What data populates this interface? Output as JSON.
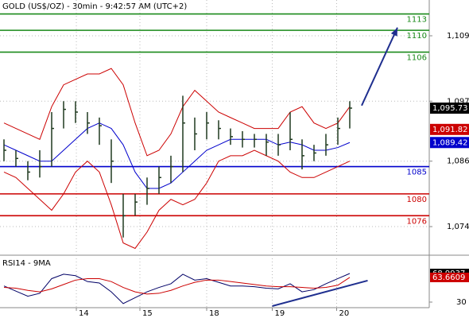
{
  "chart_data": {
    "type": "ohlc",
    "title": "GOLD (US$/OZ) - 30min - 9:42:57 AM (UTC+2)",
    "xlim": [
      -0.333,
      35.667
    ],
    "xticks": [
      {
        "value": 6.07,
        "label": "14"
      },
      {
        "value": 11.4,
        "label": "15"
      },
      {
        "value": 17,
        "label": "18"
      },
      {
        "value": 22.5,
        "label": "19"
      },
      {
        "value": 27.9,
        "label": "20"
      }
    ],
    "ylim": [
      1068.9,
      1115.56
    ],
    "yticks": [
      {
        "value": 1074,
        "label": "1,074"
      },
      {
        "value": 1086,
        "label": "1,086"
      },
      {
        "value": 1097,
        "label": "1,097"
      },
      {
        "value": 1109,
        "label": "1,109"
      }
    ],
    "grid": true,
    "bars": {
      "color": "#1f3a1f",
      "high": [
        1090,
        1088,
        1086,
        1088,
        1095,
        1097,
        1097,
        1095,
        1094,
        1090,
        1080,
        1080,
        1083,
        1085,
        1087,
        1098,
        1094,
        1095,
        1093.5,
        1092,
        1091.5,
        1091,
        1091,
        1091,
        1095,
        1090,
        1089,
        1091,
        1094,
        1097
      ],
      "low": [
        1086,
        1085,
        1082.5,
        1083,
        1085,
        1092,
        1093,
        1091,
        1089,
        1082,
        1072,
        1076,
        1078,
        1080,
        1082,
        1084,
        1088,
        1090,
        1090,
        1089,
        1088.5,
        1088.5,
        1087,
        1087,
        1088,
        1084.5,
        1086,
        1087,
        1089,
        1092
      ],
      "close": [
        1088,
        1086.5,
        1084,
        1085,
        1092,
        1095.5,
        1095,
        1093,
        1092.5,
        1086,
        1076,
        1078.5,
        1081,
        1083,
        1085,
        1093,
        1091,
        1093,
        1092,
        1090.5,
        1090,
        1090,
        1089.5,
        1089,
        1090,
        1087,
        1087.5,
        1089,
        1092,
        1095.73
      ]
    },
    "overlays": [
      {
        "color": "#cc0000",
        "values": [
          1093,
          1092,
          1091,
          1090,
          1096,
          1100,
          1101,
          1102,
          1102,
          1103,
          1100,
          1093,
          1087,
          1088,
          1091,
          1096,
          1099,
          1097,
          1095,
          1094,
          1093,
          1092,
          1092,
          1092,
          1095,
          1096,
          1093,
          1092,
          1093,
          1096
        ]
      },
      {
        "color": "#cc0000",
        "values": [
          1084,
          1083,
          1081,
          1079,
          1077,
          1080,
          1084,
          1086,
          1084,
          1078,
          1071,
          1070,
          1073,
          1077,
          1079,
          1078,
          1079,
          1082,
          1086,
          1087,
          1087,
          1088,
          1087,
          1086,
          1084,
          1083,
          1083,
          1084,
          1085,
          1086
        ]
      },
      {
        "color": "#0000cc",
        "values": [
          1089,
          1088,
          1087,
          1086,
          1086,
          1088,
          1090,
          1092,
          1093,
          1092,
          1089,
          1084,
          1081,
          1081,
          1082,
          1084,
          1086,
          1088,
          1089,
          1090,
          1090,
          1090,
          1090,
          1089,
          1089.5,
          1089,
          1088,
          1088,
          1088.5,
          1089.42
        ]
      }
    ],
    "levels": [
      {
        "value": 1113,
        "color": "#1a8a1a"
      },
      {
        "value": 1110,
        "color": "#1a8a1a"
      },
      {
        "value": 1106,
        "color": "#1a8a1a"
      },
      {
        "value": 1085,
        "color": "#0000cc"
      },
      {
        "value": 1080,
        "color": "#cc0000"
      },
      {
        "value": 1076,
        "color": "#cc0000"
      }
    ],
    "price_labels": [
      {
        "value": 1095.73,
        "label": "1,095.73",
        "color": "#000000"
      },
      {
        "value": 1091.82,
        "label": "1,091.82",
        "color": "#cc0000"
      },
      {
        "value": 1089.42,
        "label": "1,089.42",
        "color": "#0000cc"
      }
    ],
    "arrow": {
      "x": [
        30,
        33
      ],
      "y": [
        1096.2,
        1110.5
      ],
      "color": "#1f2f8f"
    },
    "rsi": {
      "title": "RSI14 - 9MA",
      "ylim": [
        23.5,
        89.6
      ],
      "yticks": [
        30
      ],
      "series": [
        {
          "color": "#000066",
          "values": [
            52,
            45,
            38,
            42,
            62,
            68,
            66,
            58,
            56,
            44,
            28,
            36,
            44,
            50,
            55,
            68,
            60,
            62,
            57,
            52,
            52,
            51,
            49,
            48,
            55,
            44,
            47,
            55,
            62,
            68.9937
          ]
        },
        {
          "color": "#cc0000",
          "values": [
            50,
            49,
            46,
            44,
            48,
            54,
            60,
            62,
            62,
            58,
            50,
            44,
            41,
            42,
            46,
            52,
            57,
            60,
            60,
            58,
            56,
            54,
            52,
            51,
            51,
            50,
            49,
            50,
            53,
            63.6609
          ]
        }
      ],
      "trend": {
        "x": [
          22.5,
          30.5
        ],
        "y": [
          24.6,
          59.3
        ],
        "color": "#1f2f8f"
      },
      "value_labels": [
        {
          "value": 68.9937,
          "color": "#000000"
        },
        {
          "value": 63.6609,
          "color": "#cc0000"
        }
      ]
    }
  }
}
